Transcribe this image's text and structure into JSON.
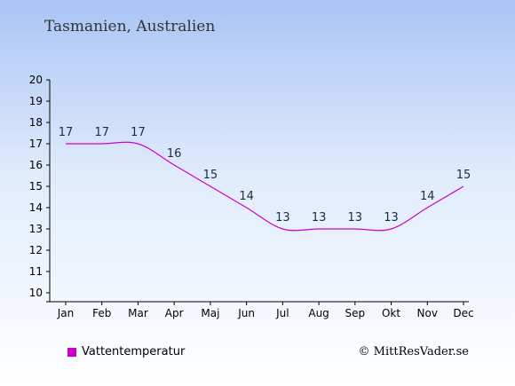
{
  "title": "Tasmanien, Australien",
  "credit": "© MittResVader.se",
  "colors": {
    "series": "#cc00cc",
    "text": "#1e2a44"
  },
  "chart_data": {
    "type": "line",
    "title": "Tasmanien, Australien",
    "xlabel": "",
    "ylabel": "",
    "categories": [
      "Jan",
      "Feb",
      "Mar",
      "Apr",
      "Maj",
      "Jun",
      "Jul",
      "Aug",
      "Sep",
      "Okt",
      "Nov",
      "Dec"
    ],
    "series": [
      {
        "name": "Vattentemperatur",
        "values": [
          17,
          17,
          17,
          16,
          15,
          14,
          13,
          13,
          13,
          13,
          14,
          15
        ]
      }
    ],
    "ylim": [
      10,
      20
    ],
    "yticks": [
      10,
      11,
      12,
      13,
      14,
      15,
      16,
      17,
      18,
      19,
      20
    ],
    "grid": false,
    "legend": "bottom-left"
  }
}
